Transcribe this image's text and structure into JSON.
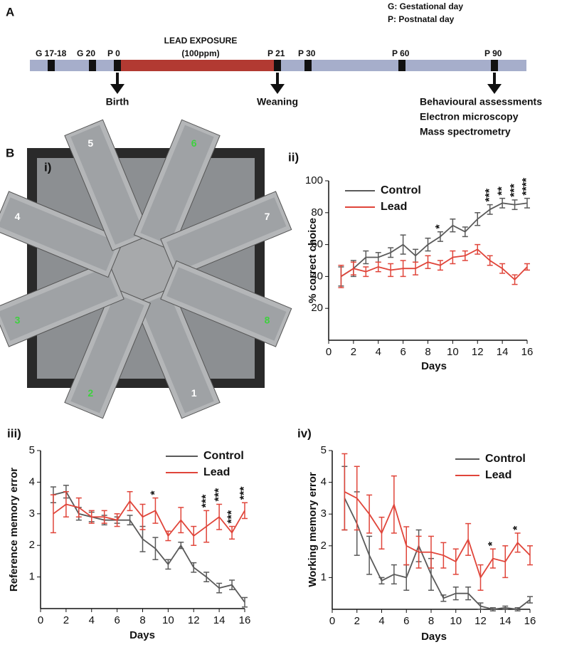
{
  "panel_labels": {
    "a": "A",
    "b": "B"
  },
  "timeline": {
    "legend": [
      "G: Gestational day",
      "P: Postnatal day"
    ],
    "exposure": [
      "LEAD EXPOSURE",
      "(100ppm)"
    ],
    "markers": [
      "G 17-18",
      "G 20",
      "P 0",
      "P 21",
      "P 30",
      "P 60",
      "P 90"
    ],
    "events": [
      {
        "label": [
          "Birth"
        ]
      },
      {
        "label": [
          "Weaning"
        ]
      },
      {
        "label": [
          "Behavioural assessments",
          "Electron microscopy",
          "Mass spectrometry"
        ]
      }
    ]
  },
  "maze": {
    "panel": "i)",
    "arms": [
      "1",
      "2",
      "3",
      "4",
      "5",
      "6",
      "7",
      "8"
    ]
  },
  "chart_data": [
    {
      "type": "line",
      "panel": "ii)",
      "ylabel": "% correct choice",
      "xlabel": "Days",
      "xlim": [
        0,
        16
      ],
      "xticks": [
        0,
        2,
        4,
        6,
        8,
        10,
        12,
        14,
        16
      ],
      "ylim": [
        0,
        100
      ],
      "yticks": [
        20,
        40,
        60,
        80,
        100
      ],
      "x": [
        1,
        2,
        3,
        4,
        5,
        6,
        7,
        8,
        9,
        10,
        11,
        12,
        13,
        14,
        15,
        16
      ],
      "series": [
        {
          "name": "Control",
          "color": "#5a5a5a",
          "values": [
            40,
            45,
            52,
            52,
            55,
            60,
            53,
            60,
            65,
            72,
            68,
            76,
            82,
            86,
            85,
            86
          ],
          "errors": [
            6,
            5,
            4,
            3,
            3,
            6,
            4,
            4,
            3,
            4,
            3,
            4,
            3,
            3,
            3,
            3
          ]
        },
        {
          "name": "Lead",
          "color": "#e0453a",
          "values": [
            40,
            45,
            43,
            46,
            44,
            45,
            45,
            49,
            47,
            52,
            53,
            57,
            50,
            45,
            38,
            46
          ],
          "errors": [
            7,
            4,
            3,
            3,
            4,
            5,
            4,
            4,
            3,
            4,
            3,
            3,
            3,
            3,
            3,
            2
          ]
        }
      ],
      "annotations": [
        {
          "x": 9,
          "text": "*"
        },
        {
          "x": 13,
          "text": "***"
        },
        {
          "x": 14,
          "text": "**"
        },
        {
          "x": 15,
          "text": "***"
        },
        {
          "x": 16,
          "text": "****"
        }
      ]
    },
    {
      "type": "line",
      "panel": "iii)",
      "ylabel": "Reference memory error",
      "xlabel": "Days",
      "xlim": [
        0,
        16
      ],
      "xticks": [
        0,
        2,
        4,
        6,
        8,
        10,
        12,
        14,
        16
      ],
      "ylim": [
        0,
        5
      ],
      "yticks": [
        1,
        2,
        3,
        4,
        5
      ],
      "x": [
        1,
        2,
        3,
        4,
        5,
        6,
        7,
        8,
        9,
        10,
        11,
        12,
        13,
        14,
        15,
        16
      ],
      "series": [
        {
          "name": "Control",
          "color": "#5a5a5a",
          "values": [
            3.6,
            3.7,
            3.0,
            2.9,
            2.8,
            2.8,
            2.8,
            2.2,
            1.9,
            1.4,
            2.0,
            1.3,
            1.0,
            0.65,
            0.75,
            0.2
          ],
          "errors": [
            0.25,
            0.2,
            0.2,
            0.15,
            0.15,
            0.1,
            0.15,
            0.4,
            0.35,
            0.15,
            0.1,
            0.15,
            0.15,
            0.15,
            0.15,
            0.15
          ]
        },
        {
          "name": "Lead",
          "color": "#e0453a",
          "values": [
            3.0,
            3.3,
            3.2,
            2.9,
            2.9,
            2.8,
            3.4,
            2.9,
            3.1,
            2.3,
            2.8,
            2.3,
            2.6,
            2.9,
            2.4,
            3.1
          ],
          "errors": [
            0.6,
            0.4,
            0.3,
            0.2,
            0.2,
            0.2,
            0.3,
            0.4,
            0.4,
            0.15,
            0.4,
            0.3,
            0.5,
            0.4,
            0.2,
            0.25
          ]
        }
      ],
      "annotations": [
        {
          "x": 9,
          "text": "*"
        },
        {
          "x": 13,
          "text": "***"
        },
        {
          "x": 14,
          "text": "***"
        },
        {
          "x": 15,
          "text": "***"
        },
        {
          "x": 16,
          "text": "***"
        }
      ]
    },
    {
      "type": "line",
      "panel": "iv)",
      "ylabel": "Working memory error",
      "xlabel": "Days",
      "xlim": [
        0,
        16
      ],
      "xticks": [
        0,
        2,
        4,
        6,
        8,
        10,
        12,
        14,
        16
      ],
      "ylim": [
        0,
        5
      ],
      "yticks": [
        1,
        2,
        3,
        4,
        5
      ],
      "x": [
        1,
        2,
        3,
        4,
        5,
        6,
        7,
        8,
        9,
        10,
        11,
        12,
        13,
        14,
        15,
        16
      ],
      "series": [
        {
          "name": "Control",
          "color": "#5a5a5a",
          "values": [
            3.5,
            2.7,
            1.7,
            0.9,
            1.1,
            1.0,
            2.0,
            1.1,
            0.35,
            0.5,
            0.5,
            0.1,
            0.0,
            0.05,
            0.0,
            0.3
          ],
          "errors": [
            1.0,
            1.0,
            0.6,
            0.1,
            0.3,
            0.4,
            0.5,
            0.5,
            0.1,
            0.2,
            0.2,
            0.1,
            0.05,
            0.05,
            0.05,
            0.1
          ]
        },
        {
          "name": "Lead",
          "color": "#e0453a",
          "values": [
            3.7,
            3.5,
            3.0,
            2.4,
            3.3,
            2.0,
            1.8,
            1.8,
            1.7,
            1.5,
            2.2,
            1.0,
            1.6,
            1.5,
            2.1,
            1.7
          ],
          "errors": [
            1.2,
            1.0,
            0.6,
            0.5,
            0.9,
            0.6,
            0.5,
            0.5,
            0.4,
            0.4,
            0.5,
            0.4,
            0.3,
            0.5,
            0.3,
            0.3
          ]
        }
      ],
      "annotations": [
        {
          "x": 13,
          "text": "*"
        },
        {
          "x": 15,
          "text": "*"
        }
      ]
    }
  ]
}
